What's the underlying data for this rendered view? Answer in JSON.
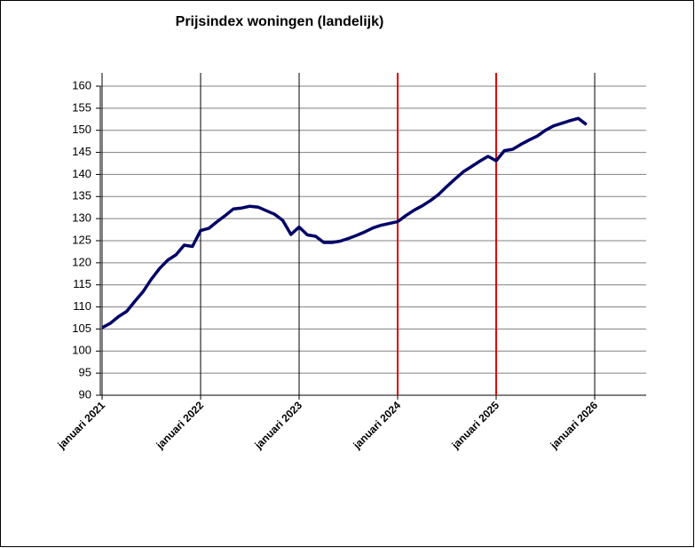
{
  "chart_data": {
    "type": "line",
    "title": "Prijsindex woningen (landelijk)",
    "categories": [
      "januari 2021",
      null,
      null,
      null,
      null,
      null,
      null,
      null,
      null,
      null,
      null,
      null,
      "januari 2022",
      null,
      null,
      null,
      null,
      null,
      null,
      null,
      null,
      null,
      null,
      null,
      "januari 2023",
      null,
      null,
      null,
      null,
      null,
      null,
      null,
      null,
      null,
      null,
      null,
      "januari 2024",
      null,
      null,
      null,
      null,
      null,
      null,
      null,
      null,
      null,
      null,
      null,
      "januari 2025",
      null,
      null,
      null,
      null,
      null,
      null,
      null,
      null,
      null,
      null,
      null,
      "januari 2026"
    ],
    "series": [
      {
        "color": "#000066",
        "values": [
          105.3,
          106.3,
          107.8,
          109.0,
          111.3,
          113.5,
          116.3,
          118.7,
          120.6,
          121.8,
          124.0,
          123.7,
          127.3,
          127.8,
          129.3,
          130.7,
          132.2,
          132.4,
          132.8,
          132.6,
          131.8,
          131.0,
          129.6,
          126.4,
          128.1,
          126.3,
          126.0,
          124.6,
          124.6,
          124.9,
          125.5,
          126.2,
          127.0,
          127.9,
          128.5,
          128.9,
          129.3,
          130.7,
          131.9,
          132.9,
          134.1,
          135.5,
          137.3,
          139.0,
          140.6,
          141.8,
          143.0,
          144.1,
          143.1,
          145.4,
          145.7,
          146.8,
          147.8,
          148.7,
          150.0,
          151.0,
          151.6,
          152.2,
          152.7,
          151.3,
          null
        ]
      }
    ],
    "ylim": [
      90,
      160
    ],
    "yticks": [
      90,
      95,
      100,
      105,
      110,
      115,
      120,
      125,
      130,
      135,
      140,
      145,
      150,
      155,
      160
    ],
    "grid": true,
    "grid_color": "#808080",
    "year_line_colors": [
      "#000000",
      "#000000",
      "#000000",
      "#e00000",
      "#e00000",
      "#000000"
    ]
  }
}
